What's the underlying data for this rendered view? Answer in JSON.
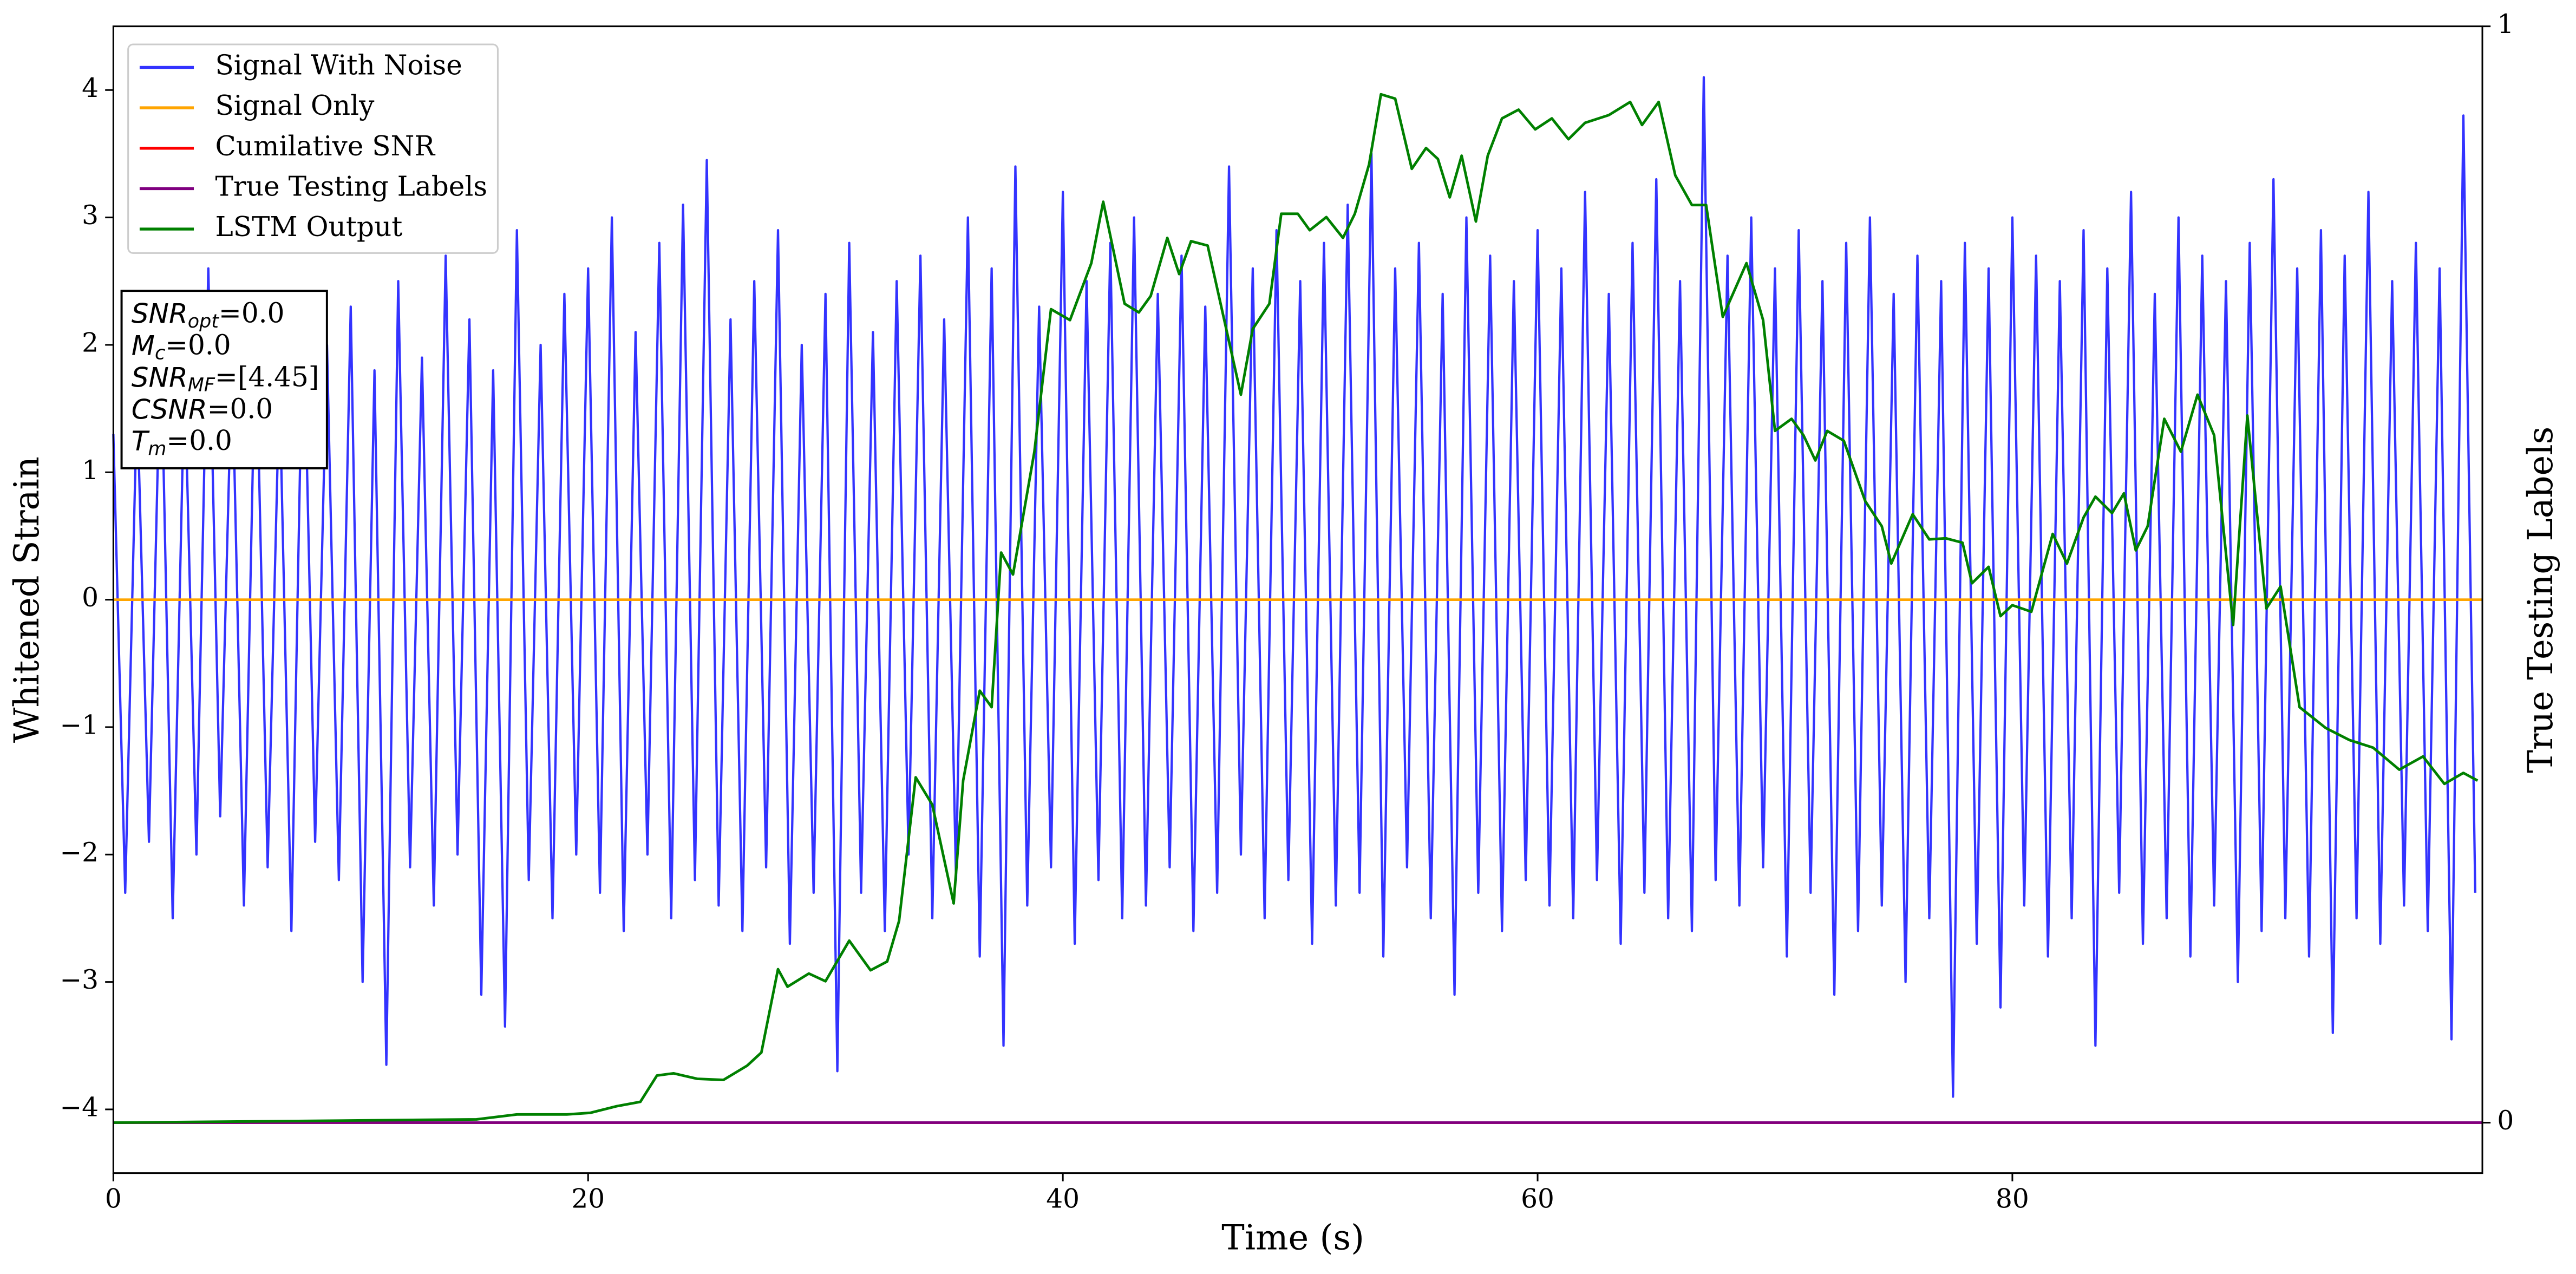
{
  "chart_data": {
    "type": "line",
    "xlabel": "Time (s)",
    "ylabel": "Whitened Strain",
    "y2label": "True Testing Labels",
    "xlim": [
      0,
      99.8
    ],
    "ylim": [
      -4.5,
      4.5
    ],
    "y2lim": [
      -0.046,
      1
    ],
    "xticks": [
      0,
      20,
      40,
      60,
      80
    ],
    "yticks": [
      {
        "value": -4,
        "label": "−4"
      },
      {
        "value": -3,
        "label": "−3"
      },
      {
        "value": -2,
        "label": "−2"
      },
      {
        "value": -1,
        "label": "−1"
      },
      0,
      1,
      2,
      3,
      4
    ],
    "y2ticks": [
      0,
      1
    ],
    "grid": false,
    "legend": "upper left",
    "series": [
      {
        "name": "Signal With Noise",
        "color": "#3333ff",
        "axis": "y",
        "x": [
          0,
          0.5,
          1,
          1.5,
          2,
          2.5,
          3,
          3.5,
          4,
          4.5,
          5,
          5.5,
          6,
          6.5,
          7,
          7.5,
          8,
          8.5,
          9,
          9.5,
          10,
          10.5,
          11,
          11.5,
          12,
          12.5,
          13,
          13.5,
          14,
          14.5,
          15,
          15.5,
          16,
          16.5,
          17,
          17.5,
          18,
          18.5,
          19,
          19.5,
          20,
          20.5,
          21,
          21.5,
          22,
          22.5,
          23,
          23.5,
          24,
          24.5,
          25,
          25.5,
          26,
          26.5,
          27,
          27.5,
          28,
          28.5,
          29,
          29.5,
          30,
          30.5,
          31,
          31.5,
          32,
          32.5,
          33,
          33.5,
          34,
          34.5,
          35,
          35.5,
          36,
          36.5,
          37,
          37.5,
          38,
          38.5,
          39,
          39.5,
          40,
          40.5,
          41,
          41.5,
          42,
          42.5,
          43,
          43.5,
          44,
          44.5,
          45,
          45.5,
          46,
          46.5,
          47,
          47.5,
          48,
          48.5,
          49,
          49.5,
          50,
          50.5,
          51,
          51.5,
          52,
          52.5,
          53,
          53.5,
          54,
          54.5,
          55,
          55.5,
          56,
          56.5,
          57,
          57.5,
          58,
          58.5,
          59,
          59.5,
          60,
          60.5,
          61,
          61.5,
          62,
          62.5,
          63,
          63.5,
          64,
          64.5,
          65,
          65.5,
          66,
          66.5,
          67,
          67.5,
          68,
          68.5,
          69,
          69.5,
          70,
          70.5,
          71,
          71.5,
          72,
          72.5,
          73,
          73.5,
          74,
          74.5,
          75,
          75.5,
          76,
          76.5,
          77,
          77.5,
          78,
          78.5,
          79,
          79.5,
          80,
          80.5,
          81,
          81.5,
          82,
          82.5,
          83,
          83.5,
          84,
          84.5,
          85,
          85.5,
          86,
          86.5,
          87,
          87.5,
          88,
          88.5,
          89,
          89.5,
          90,
          90.5,
          91,
          91.5,
          92,
          92.5,
          93,
          93.5,
          94,
          94.5,
          95,
          95.5,
          96,
          96.5,
          97,
          97.5,
          98,
          98.5,
          99,
          99.5
        ],
        "values": [
          1.3,
          -2.3,
          1.6,
          -1.9,
          2.1,
          -2.5,
          1.8,
          -2.0,
          2.6,
          -1.7,
          1.9,
          -2.4,
          2.2,
          -2.1,
          1.7,
          -2.6,
          2.4,
          -1.9,
          2.0,
          -2.2,
          2.3,
          -3.0,
          1.8,
          -3.65,
          2.5,
          -2.1,
          1.9,
          -2.4,
          2.7,
          -2.0,
          2.2,
          -3.1,
          1.8,
          -3.35,
          2.9,
          -2.2,
          2.0,
          -2.5,
          2.4,
          -2.0,
          2.6,
          -2.3,
          3.0,
          -2.6,
          2.1,
          -2.0,
          2.8,
          -2.5,
          3.1,
          -2.2,
          3.45,
          -2.4,
          2.2,
          -2.6,
          2.5,
          -2.1,
          2.9,
          -2.7,
          2.0,
          -2.3,
          2.4,
          -3.7,
          2.8,
          -2.3,
          2.1,
          -2.6,
          2.5,
          -2.0,
          2.7,
          -2.5,
          2.2,
          -2.2,
          3.0,
          -2.8,
          2.6,
          -3.5,
          3.4,
          -2.4,
          2.3,
          -2.1,
          3.2,
          -2.7,
          2.5,
          -2.2,
          2.8,
          -2.5,
          3.0,
          -2.4,
          2.4,
          -2.1,
          2.7,
          -2.6,
          2.3,
          -2.3,
          3.4,
          -2.0,
          2.6,
          -2.5,
          2.9,
          -2.2,
          2.5,
          -2.7,
          2.8,
          -2.4,
          3.1,
          -2.3,
          3.5,
          -2.8,
          2.6,
          -2.1,
          2.8,
          -2.5,
          2.4,
          -3.1,
          3.0,
          -2.3,
          2.7,
          -2.6,
          2.5,
          -2.2,
          2.9,
          -2.4,
          2.6,
          -2.5,
          3.2,
          -2.2,
          2.4,
          -2.7,
          2.8,
          -2.3,
          3.3,
          -2.5,
          2.5,
          -2.6,
          4.1,
          -2.2,
          2.7,
          -2.4,
          3.0,
          -2.1,
          2.6,
          -2.8,
          2.9,
          -2.3,
          2.5,
          -3.1,
          2.8,
          -2.6,
          3.0,
          -2.4,
          2.4,
          -3.0,
          2.7,
          -2.5,
          2.5,
          -3.9,
          2.8,
          -2.7,
          2.6,
          -3.2,
          3.0,
          -2.4,
          2.7,
          -2.8,
          2.5,
          -2.5,
          2.9,
          -3.5,
          2.6,
          -2.3,
          3.2,
          -2.7,
          2.4,
          -2.5,
          3.0,
          -2.8,
          2.7,
          -2.4,
          2.5,
          -3.0,
          2.8,
          -2.6,
          3.3,
          -2.5,
          2.6,
          -2.8,
          2.9,
          -3.4,
          2.7,
          -2.5,
          3.2,
          -2.7,
          2.5,
          -2.4,
          2.8,
          -2.6,
          2.6,
          -3.45,
          3.8,
          -2.3
        ]
      },
      {
        "name": "Signal Only",
        "color": "#ffa500",
        "axis": "y",
        "x": [
          0,
          99.8
        ],
        "values": [
          0,
          0
        ]
      },
      {
        "name": "Cumilative SNR",
        "color": "#ff0000",
        "axis": "y2",
        "x": [
          0,
          99.8
        ],
        "values": [
          0,
          0
        ]
      },
      {
        "name": "True Testing Labels",
        "color": "#800080",
        "axis": "y2",
        "x": [
          0,
          99.8
        ],
        "values": [
          0,
          0
        ]
      },
      {
        "name": "LSTM Output",
        "color": "#008000",
        "axis": "y2",
        "x": [
          0,
          15.3,
          17,
          19.1,
          20.1,
          21.2,
          22.2,
          22.9,
          23.6,
          24.6,
          25.7,
          26.7,
          27.3,
          28,
          28.4,
          29.3,
          30,
          31,
          31.9,
          32.6,
          33.1,
          33.8,
          34.5,
          35.4,
          35.8,
          36.5,
          37,
          37.4,
          37.9,
          38.8,
          39.5,
          40.3,
          41.2,
          41.7,
          42.6,
          43.2,
          43.7,
          44.4,
          44.9,
          45.4,
          46.1,
          46.8,
          47.5,
          48,
          48.7,
          49.2,
          49.9,
          50.4,
          51.1,
          51.8,
          52.3,
          52.9,
          53.4,
          54,
          54.7,
          55.3,
          55.8,
          56.3,
          56.8,
          57.4,
          57.9,
          58.5,
          59.2,
          59.9,
          60.6,
          61.3,
          62,
          63,
          63.9,
          64.4,
          65.1,
          65.8,
          66.5,
          67.1,
          67.8,
          68.8,
          69.5,
          70,
          70.7,
          71.2,
          71.7,
          72.2,
          72.9,
          73.8,
          74.5,
          74.9,
          75.8,
          76.5,
          77.2,
          77.9,
          78.3,
          79,
          79.5,
          80,
          80.8,
          81.7,
          82.3,
          83,
          83.5,
          84.2,
          84.7,
          85.2,
          85.7,
          86.4,
          87.1,
          87.8,
          88.5,
          89.3,
          89.9,
          90.7,
          91.3,
          92.1,
          93.2,
          94.2,
          95.2,
          96.3,
          97.3,
          98.2,
          99,
          99.6
        ],
        "values": [
          0,
          0.003,
          0.0075,
          0.0075,
          0.009,
          0.015,
          0.019,
          0.043,
          0.045,
          0.04,
          0.039,
          0.052,
          0.064,
          0.14,
          0.124,
          0.136,
          0.129,
          0.166,
          0.139,
          0.147,
          0.184,
          0.315,
          0.29,
          0.2,
          0.312,
          0.394,
          0.379,
          0.52,
          0.5,
          0.612,
          0.742,
          0.732,
          0.784,
          0.84,
          0.747,
          0.739,
          0.754,
          0.807,
          0.774,
          0.804,
          0.8,
          0.732,
          0.664,
          0.724,
          0.747,
          0.829,
          0.829,
          0.814,
          0.826,
          0.807,
          0.829,
          0.874,
          0.938,
          0.934,
          0.87,
          0.889,
          0.879,
          0.844,
          0.882,
          0.822,
          0.882,
          0.916,
          0.924,
          0.906,
          0.916,
          0.897,
          0.912,
          0.919,
          0.931,
          0.91,
          0.931,
          0.864,
          0.837,
          0.837,
          0.735,
          0.784,
          0.732,
          0.631,
          0.642,
          0.627,
          0.604,
          0.631,
          0.622,
          0.567,
          0.544,
          0.51,
          0.555,
          0.532,
          0.533,
          0.529,
          0.492,
          0.507,
          0.462,
          0.472,
          0.466,
          0.537,
          0.51,
          0.552,
          0.571,
          0.556,
          0.574,
          0.522,
          0.544,
          0.642,
          0.612,
          0.664,
          0.627,
          0.454,
          0.645,
          0.469,
          0.489,
          0.379,
          0.36,
          0.349,
          0.342,
          0.322,
          0.334,
          0.309,
          0.319,
          0.312
        ]
      }
    ],
    "annotation_box": [
      {
        "text": "SNR",
        "sub": "opt",
        "rest": "=0.0"
      },
      {
        "text": "M",
        "sub": "c",
        "rest": "=0.0"
      },
      {
        "text": "SNR",
        "sub": "MF",
        "rest": "=[4.45]"
      },
      {
        "text": "CSNR",
        "rest": "=0.0"
      },
      {
        "text": "T",
        "sub": "m",
        "rest": "=0.0"
      }
    ]
  }
}
